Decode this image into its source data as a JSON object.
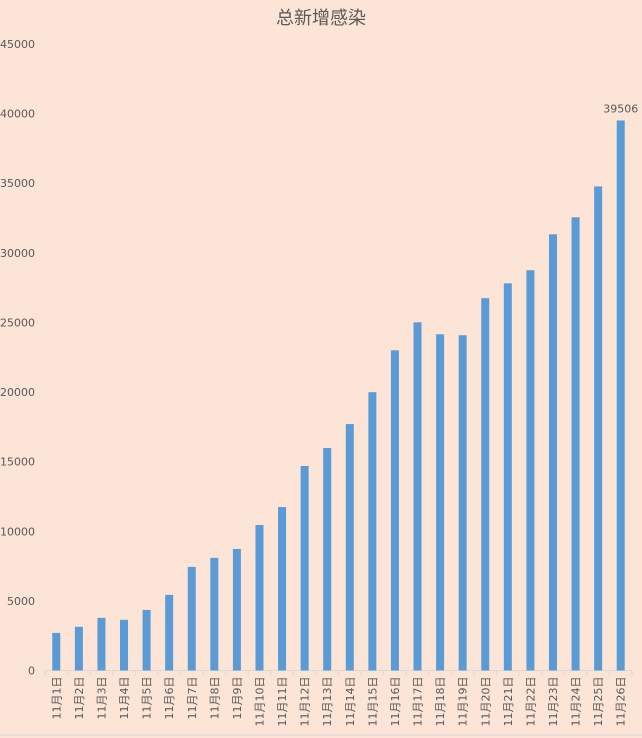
{
  "chart_data": {
    "type": "bar",
    "title": "总新增感染",
    "xlabel": "",
    "ylabel": "",
    "ylim": [
      0,
      45000
    ],
    "yticks": [
      0,
      5000,
      10000,
      15000,
      20000,
      25000,
      30000,
      35000,
      40000,
      45000
    ],
    "grid": false,
    "categories": [
      "11月1日",
      "11月2日",
      "11月3日",
      "11月4日",
      "11月5日",
      "11月6日",
      "11月7日",
      "11月8日",
      "11月9日",
      "11月10日",
      "11月11日",
      "11月12日",
      "11月13日",
      "11月14日",
      "11月15日",
      "11月16日",
      "11月17日",
      "11月18日",
      "11月19日",
      "11月20日",
      "11月21日",
      "11月22日",
      "11月23日",
      "11月24日",
      "11月25日",
      "11月26日"
    ],
    "values": [
      2700,
      3140,
      3780,
      3640,
      4350,
      5430,
      7440,
      8090,
      8730,
      10450,
      11740,
      14690,
      15980,
      17700,
      19990,
      23000,
      25010,
      24150,
      24080,
      26740,
      27810,
      28750,
      31330,
      32550,
      34770,
      39506
    ],
    "data_labels": [
      {
        "index": 25,
        "text": "39506"
      }
    ],
    "colors": {
      "bar": "#5B9BD5",
      "background": "#FCE4D6",
      "text": "#595959",
      "axis": "#D9D9D9"
    }
  }
}
